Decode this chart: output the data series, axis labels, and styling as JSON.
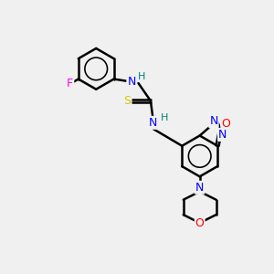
{
  "bg_color": "#f0f0f0",
  "line_color": "#000000",
  "bond_width": 1.8,
  "fig_size": [
    3.0,
    3.0
  ],
  "dpi": 100,
  "atom_colors": {
    "F": "#ff00ff",
    "N": "#0000ff",
    "O": "#ff0000",
    "S": "#cccc00",
    "H": "#008080"
  }
}
